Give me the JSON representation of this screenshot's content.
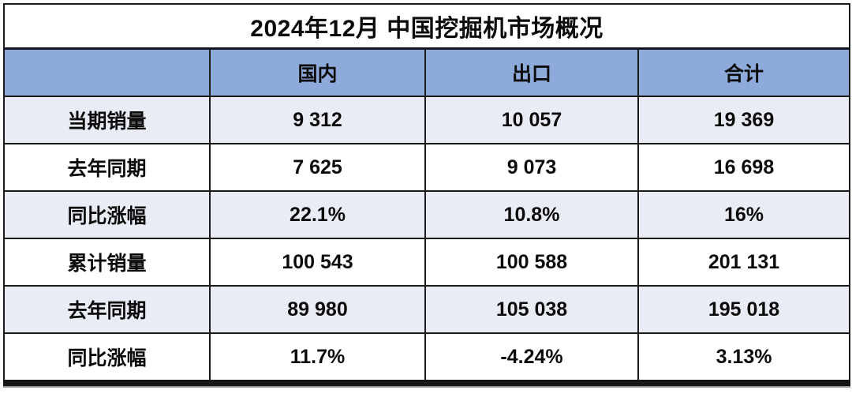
{
  "chart_data": {
    "type": "table",
    "title": "2024年12月 中国挖掘机市场概况",
    "columns": [
      "",
      "国内",
      "出口",
      "合计"
    ],
    "rows": [
      {
        "label": "当期销量",
        "values": [
          "9 312",
          "10 057",
          "19 369"
        ]
      },
      {
        "label": "去年同期",
        "values": [
          "7 625",
          "9 073",
          "16 698"
        ]
      },
      {
        "label": "同比涨幅",
        "values": [
          "22.1%",
          "10.8%",
          "16%"
        ]
      },
      {
        "label": "累计销量",
        "values": [
          "100 543",
          "100 588",
          "201 131"
        ]
      },
      {
        "label": "去年同期",
        "values": [
          "89 980",
          "105 038",
          "195 018"
        ]
      },
      {
        "label": "同比涨幅",
        "values": [
          "11.7%",
          "-4.24%",
          "3.13%"
        ]
      }
    ],
    "layout": {
      "banded_rows": true,
      "banded_row_indexes": [
        0,
        2,
        4
      ],
      "grid": true
    }
  },
  "colors": {
    "header_bg": "#8EAADB",
    "band_bg": "#E9EBF5",
    "border": "#1A1A1A",
    "text": "#0B0B0B",
    "title_bg": "#FFFFFF"
  }
}
